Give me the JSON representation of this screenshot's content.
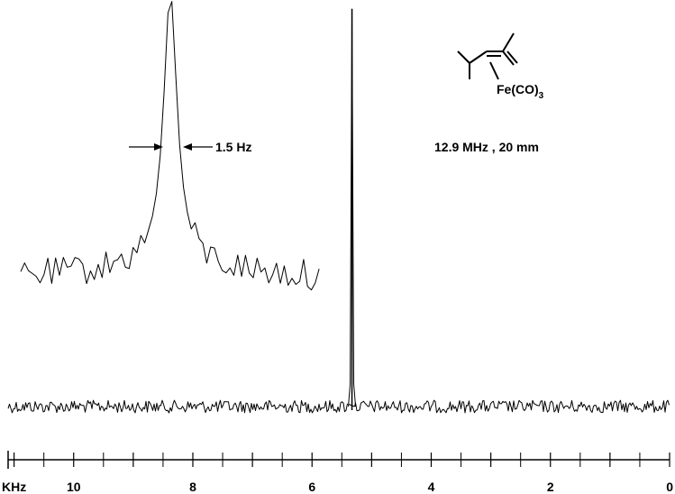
{
  "chart_data": {
    "type": "line",
    "title": "",
    "xlabel": "KHz",
    "ylabel": "",
    "x_reversed": true,
    "xlim": [
      11.1,
      0
    ],
    "x_ticks": [
      {
        "value": 10,
        "label": "10"
      },
      {
        "value": 8,
        "label": "8"
      },
      {
        "value": 6,
        "label": "6"
      },
      {
        "value": 4,
        "label": "4"
      },
      {
        "value": 2,
        "label": "2"
      },
      {
        "value": 0,
        "label": "0"
      }
    ],
    "minor_tick_step": 0.5,
    "grid": false,
    "legend": "none",
    "main_spectrum": {
      "baseline": 0,
      "noise_amplitude": 0.012,
      "peak": {
        "x_khz": 5.33,
        "height": 1.0
      }
    },
    "inset": {
      "description_label": "1.5 Hz",
      "peak_fwhm_hz": 1.5,
      "baseline_level": 0.26,
      "peak_height": 1.0
    },
    "annotations": {
      "linewidth_label": "1.5 Hz",
      "conditions_label": "12.9 MHz , 20 mm",
      "molecule": {
        "ligand": "2,4-dimethyl-pentadiene (drawn as skeletal structure)",
        "metal_label": "Fe(CO)",
        "metal_subscript": "3"
      }
    }
  }
}
